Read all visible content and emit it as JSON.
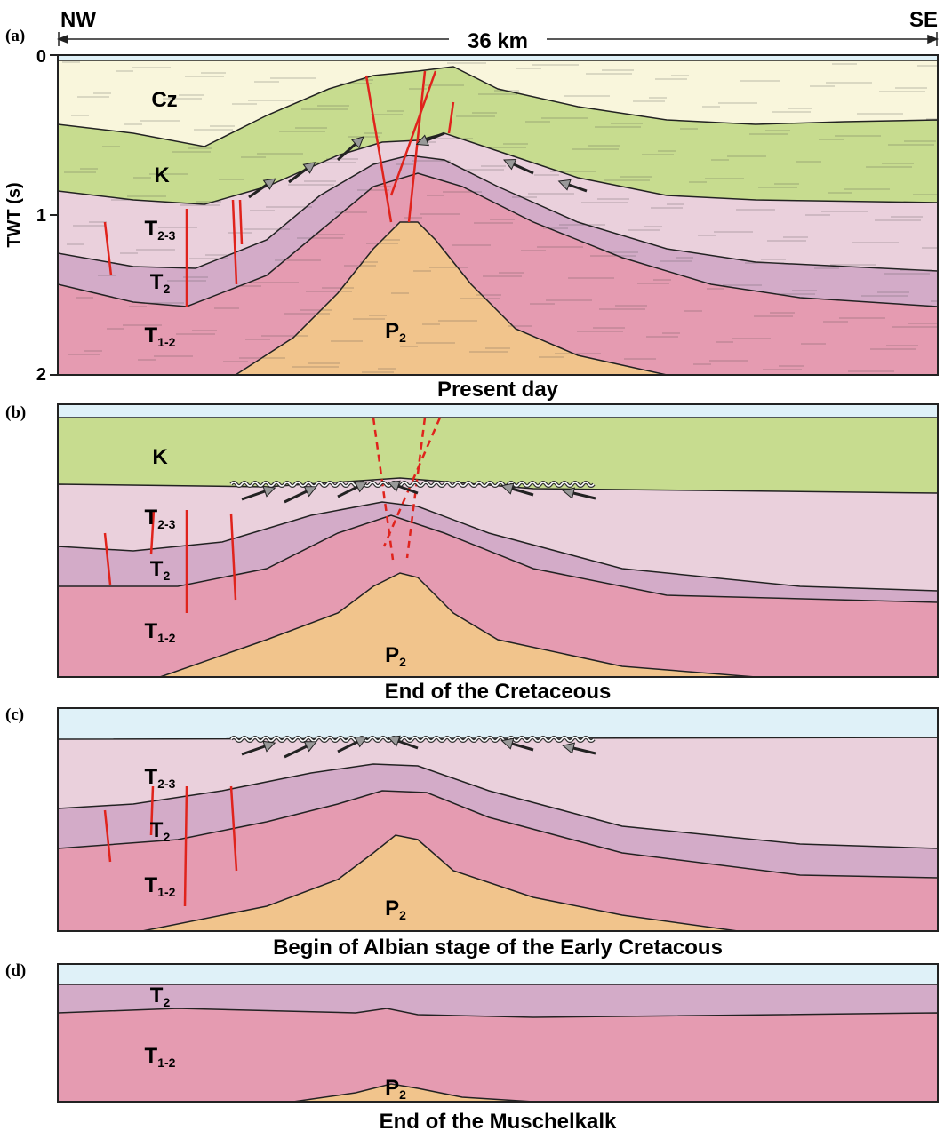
{
  "header": {
    "left": "NW",
    "right": "SE",
    "distance": "36 km"
  },
  "panels": [
    {
      "tag": "(a)",
      "caption": "Present day",
      "axis": {
        "title": "TWT (s)",
        "ticks": [
          "0",
          "1",
          "2"
        ]
      },
      "labels": [
        {
          "base": "Cz"
        },
        {
          "base": "K"
        },
        {
          "base": "T",
          "sub": "2-3"
        },
        {
          "base": "T",
          "sub": "2"
        },
        {
          "base": "T",
          "sub": "1-2"
        },
        {
          "base": "P",
          "sub": "2"
        }
      ]
    },
    {
      "tag": "(b)",
      "caption": "End of the Cretaceous",
      "labels": [
        {
          "base": "K"
        },
        {
          "base": "T",
          "sub": "2-3"
        },
        {
          "base": "T",
          "sub": "2"
        },
        {
          "base": "T",
          "sub": "1-2"
        },
        {
          "base": "P",
          "sub": "2"
        }
      ]
    },
    {
      "tag": "(c)",
      "caption": "Begin of Albian stage of the Early Cretacous",
      "labels": [
        {
          "base": "T",
          "sub": "2-3"
        },
        {
          "base": "T",
          "sub": "2"
        },
        {
          "base": "T",
          "sub": "1-2"
        },
        {
          "base": "P",
          "sub": "2"
        }
      ]
    },
    {
      "tag": "(d)",
      "caption": "End of the Muschelkalk",
      "labels": [
        {
          "base": "T",
          "sub": "2"
        },
        {
          "base": "T",
          "sub": "1-2"
        },
        {
          "base": "P",
          "sub": "2"
        }
      ]
    }
  ]
}
